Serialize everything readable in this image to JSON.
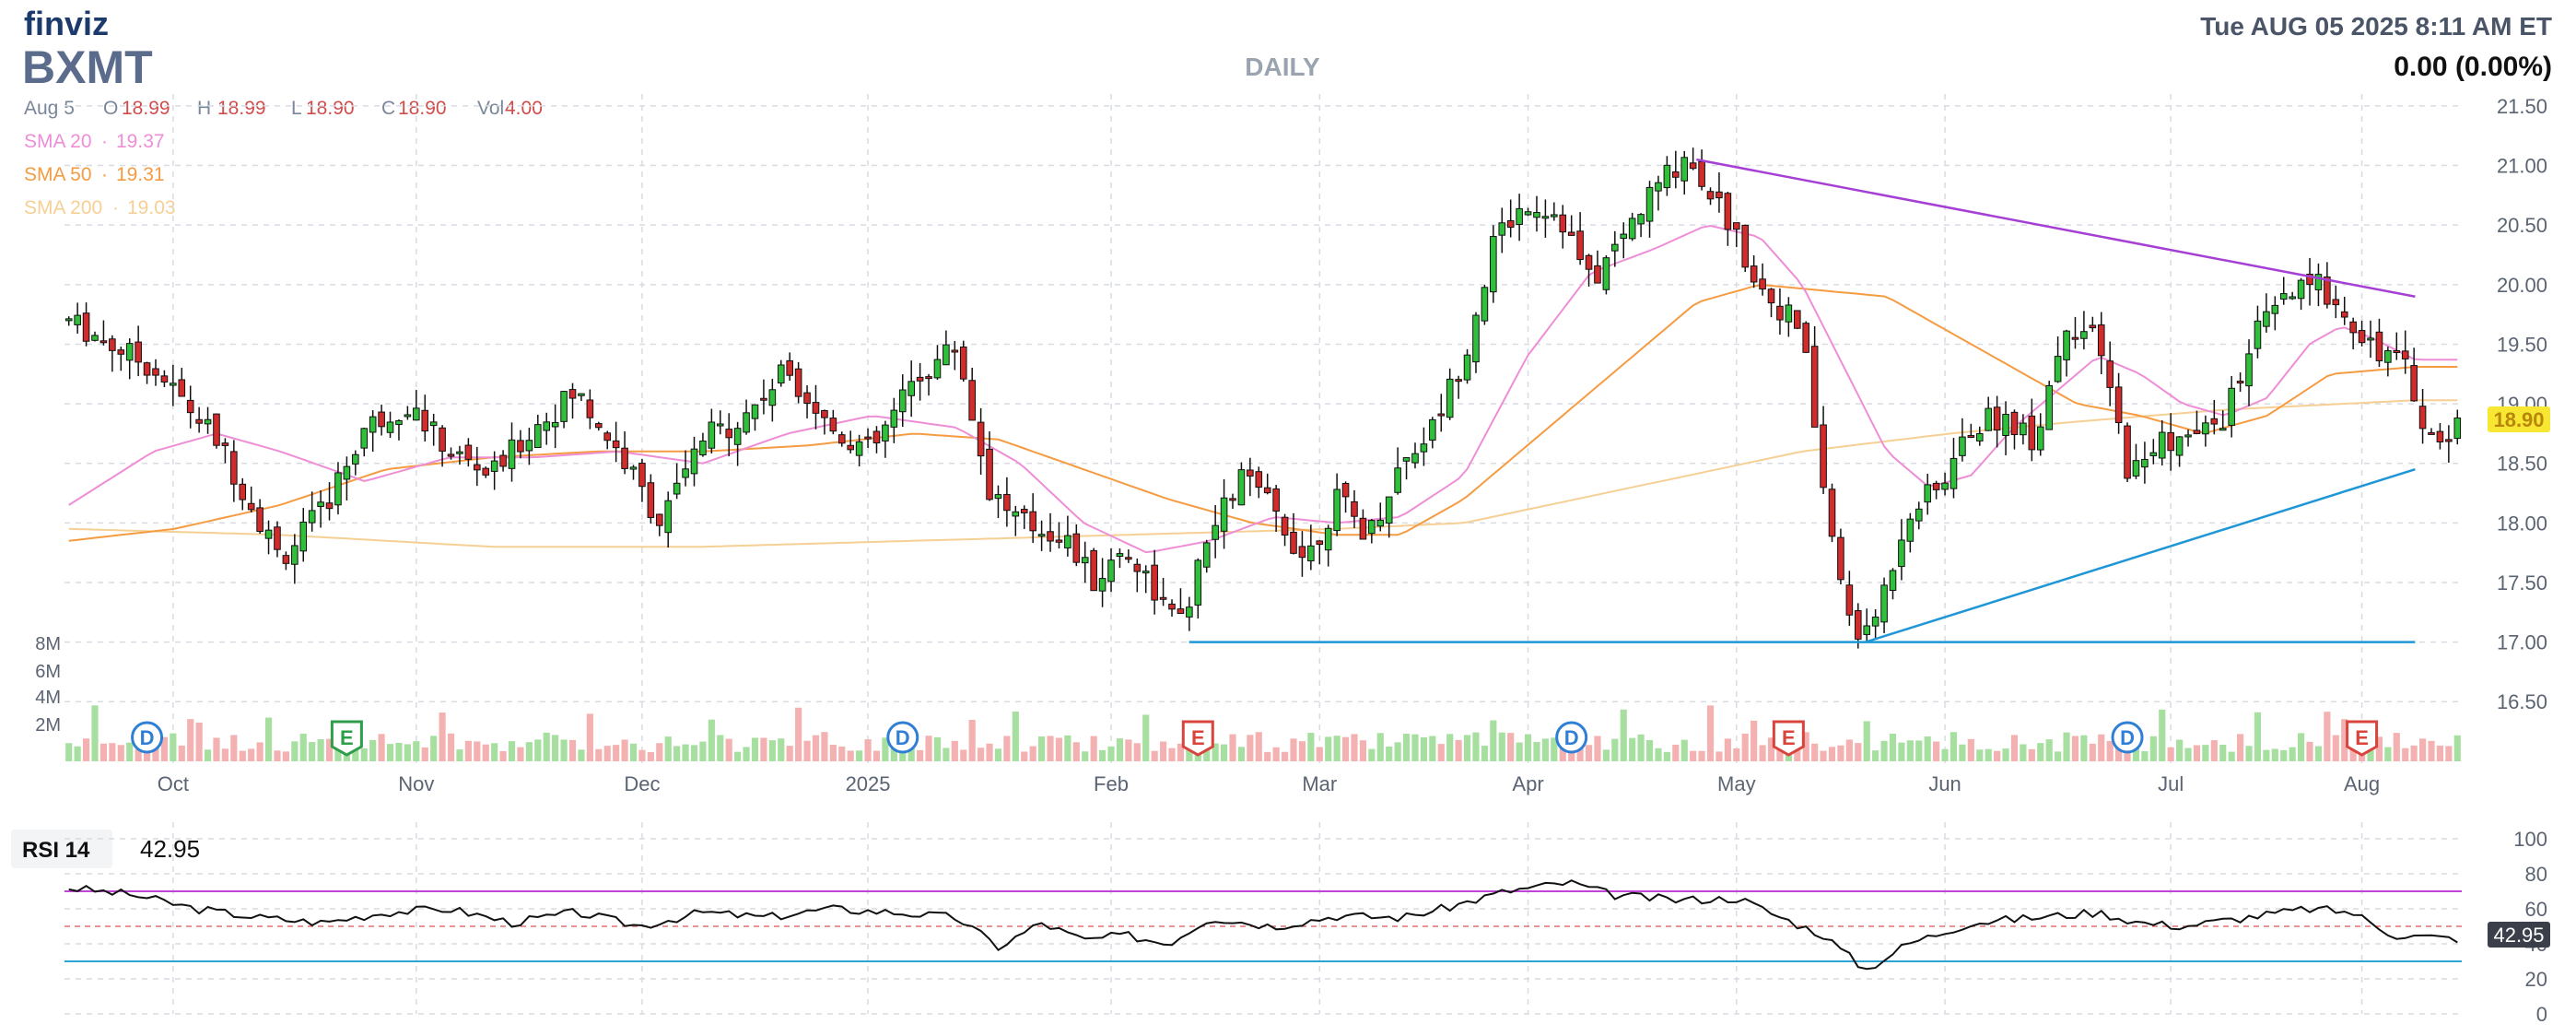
{
  "header": {
    "brand": "finviz",
    "ticker": "BXMT",
    "timeframe": "DAILY",
    "datetime": "Tue AUG 05 2025 8:11 AM ET",
    "change": "0.00 (0.00%)"
  },
  "legend": {
    "date": "Aug 5",
    "ohlcv": [
      {
        "key": "O",
        "value": "18.99"
      },
      {
        "key": "H",
        "value": "18.99"
      },
      {
        "key": "L",
        "value": "18.90"
      },
      {
        "key": "C",
        "value": "18.90"
      },
      {
        "key": "Vol",
        "value": "4.00"
      }
    ],
    "sma": [
      {
        "label": "SMA 20",
        "value": "19.37",
        "color": "#ee8ed6"
      },
      {
        "label": "SMA 50",
        "value": "19.31",
        "color": "#f59b42"
      },
      {
        "label": "SMA 200",
        "value": "19.03",
        "color": "#f6cf95"
      }
    ]
  },
  "rsi": {
    "label": "RSI 14",
    "value": "42.95",
    "last_label": "42.95"
  },
  "last_price_label": "18.90",
  "chart_data": {
    "type": "candlestick",
    "x_ticks": [
      "Oct",
      "Nov",
      "Dec",
      "2025",
      "Feb",
      "Mar",
      "Apr",
      "May",
      "Jun",
      "Jul",
      "Aug"
    ],
    "price_ticks": [
      "21.50",
      "21.00",
      "20.50",
      "20.00",
      "19.50",
      "19.00",
      "18.50",
      "18.00",
      "17.50",
      "17.00",
      "16.50"
    ],
    "volume_ticks": [
      "8M",
      "6M",
      "4M",
      "2M"
    ],
    "rsi_ticks": [
      "100",
      "80",
      "60",
      "40",
      "20",
      "0"
    ],
    "ylim": [
      16.2,
      21.6
    ],
    "num_bars": 217,
    "price_path": [
      [
        0,
        19.7
      ],
      [
        8,
        19.3
      ],
      [
        14,
        18.7
      ],
      [
        17,
        18.2
      ],
      [
        20,
        17.7
      ],
      [
        24,
        18.1
      ],
      [
        28,
        18.8
      ],
      [
        32,
        19.0
      ],
      [
        36,
        18.6
      ],
      [
        40,
        18.4
      ],
      [
        44,
        18.8
      ],
      [
        48,
        19.1
      ],
      [
        52,
        18.6
      ],
      [
        56,
        18.0
      ],
      [
        60,
        18.7
      ],
      [
        64,
        18.9
      ],
      [
        68,
        19.3
      ],
      [
        72,
        18.8
      ],
      [
        76,
        18.6
      ],
      [
        80,
        19.2
      ],
      [
        84,
        19.5
      ],
      [
        87,
        18.3
      ],
      [
        90,
        18.0
      ],
      [
        94,
        17.9
      ],
      [
        97,
        17.5
      ],
      [
        100,
        17.8
      ],
      [
        103,
        17.4
      ],
      [
        105,
        17.1
      ],
      [
        108,
        17.9
      ],
      [
        111,
        18.4
      ],
      [
        114,
        18.1
      ],
      [
        117,
        17.7
      ],
      [
        120,
        18.2
      ],
      [
        123,
        17.9
      ],
      [
        126,
        18.5
      ],
      [
        129,
        18.8
      ],
      [
        132,
        19.4
      ],
      [
        135,
        20.4
      ],
      [
        138,
        20.7
      ],
      [
        141,
        20.6
      ],
      [
        144,
        20.0
      ],
      [
        147,
        20.4
      ],
      [
        150,
        20.8
      ],
      [
        153,
        21.1
      ],
      [
        156,
        20.7
      ],
      [
        160,
        20.0
      ],
      [
        164,
        19.6
      ],
      [
        166,
        18.3
      ],
      [
        168,
        17.3
      ],
      [
        170,
        17.0
      ],
      [
        172,
        17.5
      ],
      [
        174,
        18.1
      ],
      [
        177,
        18.3
      ],
      [
        180,
        18.8
      ],
      [
        183,
        18.9
      ],
      [
        186,
        18.7
      ],
      [
        189,
        19.7
      ],
      [
        192,
        19.5
      ],
      [
        195,
        18.4
      ],
      [
        198,
        18.7
      ],
      [
        201,
        18.7
      ],
      [
        204,
        18.9
      ],
      [
        207,
        19.6
      ],
      [
        210,
        19.9
      ],
      [
        213,
        20.0
      ],
      [
        215,
        19.8
      ],
      [
        218,
        19.5
      ],
      [
        221,
        19.3
      ],
      [
        224,
        18.6
      ],
      [
        226,
        18.9
      ]
    ],
    "bar_volumes_note": "volume estimated from bars",
    "sma20_path": [
      [
        0,
        18.15
      ],
      [
        8,
        18.6
      ],
      [
        14,
        18.75
      ],
      [
        20,
        18.6
      ],
      [
        28,
        18.35
      ],
      [
        36,
        18.55
      ],
      [
        44,
        18.55
      ],
      [
        52,
        18.6
      ],
      [
        60,
        18.5
      ],
      [
        68,
        18.75
      ],
      [
        76,
        18.9
      ],
      [
        84,
        18.8
      ],
      [
        90,
        18.5
      ],
      [
        96,
        18.0
      ],
      [
        102,
        17.75
      ],
      [
        108,
        17.85
      ],
      [
        114,
        18.05
      ],
      [
        120,
        18.0
      ],
      [
        126,
        18.05
      ],
      [
        132,
        18.4
      ],
      [
        138,
        19.4
      ],
      [
        144,
        20.1
      ],
      [
        150,
        20.3
      ],
      [
        155,
        20.5
      ],
      [
        160,
        20.4
      ],
      [
        164,
        20.0
      ],
      [
        168,
        19.3
      ],
      [
        172,
        18.6
      ],
      [
        176,
        18.3
      ],
      [
        180,
        18.4
      ],
      [
        184,
        18.8
      ],
      [
        188,
        19.1
      ],
      [
        192,
        19.4
      ],
      [
        196,
        19.25
      ],
      [
        200,
        19.0
      ],
      [
        204,
        18.9
      ],
      [
        208,
        19.05
      ],
      [
        212,
        19.5
      ],
      [
        215,
        19.65
      ],
      [
        218,
        19.55
      ],
      [
        222,
        19.37
      ]
    ],
    "sma50_path": [
      [
        0,
        17.85
      ],
      [
        10,
        17.95
      ],
      [
        20,
        18.15
      ],
      [
        30,
        18.45
      ],
      [
        40,
        18.55
      ],
      [
        50,
        18.6
      ],
      [
        60,
        18.6
      ],
      [
        70,
        18.65
      ],
      [
        80,
        18.75
      ],
      [
        88,
        18.7
      ],
      [
        96,
        18.45
      ],
      [
        104,
        18.2
      ],
      [
        112,
        18.0
      ],
      [
        120,
        17.9
      ],
      [
        126,
        17.9
      ],
      [
        132,
        18.2
      ],
      [
        140,
        18.8
      ],
      [
        148,
        19.4
      ],
      [
        154,
        19.85
      ],
      [
        160,
        20.0
      ],
      [
        166,
        19.95
      ],
      [
        172,
        19.9
      ],
      [
        178,
        19.6
      ],
      [
        184,
        19.3
      ],
      [
        190,
        19.0
      ],
      [
        196,
        18.9
      ],
      [
        202,
        18.75
      ],
      [
        208,
        18.9
      ],
      [
        214,
        19.25
      ],
      [
        222,
        19.31
      ]
    ],
    "sma200_path": [
      [
        0,
        17.95
      ],
      [
        20,
        17.9
      ],
      [
        40,
        17.8
      ],
      [
        60,
        17.8
      ],
      [
        80,
        17.85
      ],
      [
        100,
        17.9
      ],
      [
        120,
        17.95
      ],
      [
        132,
        18.0
      ],
      [
        148,
        18.3
      ],
      [
        164,
        18.6
      ],
      [
        178,
        18.75
      ],
      [
        190,
        18.85
      ],
      [
        204,
        18.95
      ],
      [
        222,
        19.03
      ]
    ],
    "trendlines": [
      {
        "name": "upper-resistance",
        "color": "#a63fd6",
        "points": [
          [
            154,
            21.05
          ],
          [
            222,
            19.9
          ]
        ]
      },
      {
        "name": "lower-support",
        "color": "#1f97d6",
        "points": [
          [
            170,
            17.0
          ],
          [
            222,
            18.45
          ]
        ]
      },
      {
        "name": "horizontal-support",
        "color": "#1f97d6",
        "points": [
          [
            106,
            17.0
          ],
          [
            222,
            17.0
          ]
        ]
      }
    ],
    "events": [
      {
        "type": "D",
        "bar": 9,
        "color": "#2f7fd6"
      },
      {
        "type": "E",
        "bar": 32,
        "color": "#2f9e4b"
      },
      {
        "type": "D",
        "bar": 96,
        "color": "#2f7fd6"
      },
      {
        "type": "E",
        "bar": 130,
        "color": "#d9443c"
      },
      {
        "type": "D",
        "bar": 173,
        "color": "#2f7fd6"
      },
      {
        "type": "E",
        "bar": 198,
        "color": "#d9443c"
      },
      {
        "type": "D",
        "bar": 237,
        "color": "#2f7fd6"
      },
      {
        "type": "E",
        "bar": 264,
        "color": "#d9443c"
      }
    ],
    "rsi_levels": {
      "overbought": 70,
      "oversold": 30,
      "mid": 50
    },
    "rsi_path": [
      [
        0,
        72
      ],
      [
        6,
        68
      ],
      [
        12,
        60
      ],
      [
        18,
        55
      ],
      [
        24,
        52
      ],
      [
        30,
        58
      ],
      [
        36,
        60
      ],
      [
        42,
        52
      ],
      [
        48,
        58
      ],
      [
        54,
        50
      ],
      [
        60,
        58
      ],
      [
        66,
        55
      ],
      [
        72,
        60
      ],
      [
        78,
        58
      ],
      [
        84,
        55
      ],
      [
        88,
        38
      ],
      [
        92,
        52
      ],
      [
        96,
        42
      ],
      [
        100,
        45
      ],
      [
        104,
        40
      ],
      [
        108,
        55
      ],
      [
        114,
        50
      ],
      [
        120,
        56
      ],
      [
        126,
        55
      ],
      [
        130,
        60
      ],
      [
        136,
        70
      ],
      [
        142,
        75
      ],
      [
        146,
        68
      ],
      [
        152,
        65
      ],
      [
        158,
        66
      ],
      [
        162,
        55
      ],
      [
        166,
        45
      ],
      [
        170,
        25
      ],
      [
        174,
        40
      ],
      [
        180,
        52
      ],
      [
        186,
        55
      ],
      [
        192,
        58
      ],
      [
        196,
        52
      ],
      [
        200,
        50
      ],
      [
        206,
        55
      ],
      [
        212,
        60
      ],
      [
        216,
        58
      ],
      [
        220,
        45
      ],
      [
        226,
        42.95
      ]
    ]
  }
}
